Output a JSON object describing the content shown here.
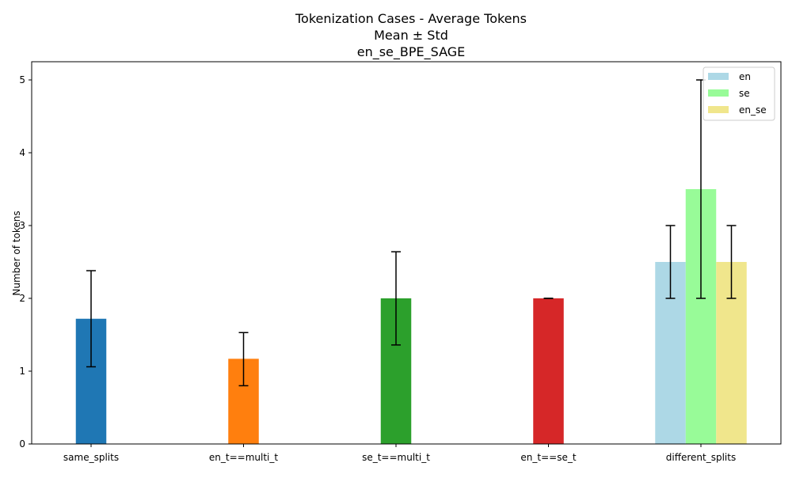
{
  "chart_data": {
    "type": "bar",
    "title_lines": [
      "Tokenization Cases - Average Tokens",
      "Mean ± Std",
      "en_se_BPE_SAGE"
    ],
    "xlabel": "",
    "ylabel": "Number of tokens",
    "ylim": [
      0,
      5.25
    ],
    "yticks": [
      0,
      1,
      2,
      3,
      4,
      5
    ],
    "categories": [
      "same_splits",
      "en_t==multi_t",
      "se_t==multi_t",
      "en_t==se_t",
      "different_splits"
    ],
    "bars": [
      {
        "category": "same_splits",
        "mean": 1.72,
        "err_low": 1.06,
        "err_high": 2.38,
        "color": "#1f77b4"
      },
      {
        "category": "en_t==multi_t",
        "mean": 1.17,
        "err_low": 0.8,
        "err_high": 1.53,
        "color": "#ff7f0e"
      },
      {
        "category": "se_t==multi_t",
        "mean": 2.0,
        "err_low": 1.36,
        "err_high": 2.64,
        "color": "#2ca02c"
      },
      {
        "category": "en_t==se_t",
        "mean": 2.0,
        "err_low": 2.0,
        "err_high": 2.0,
        "color": "#d62728"
      },
      {
        "category": "different_splits",
        "series": "en",
        "mean": 2.5,
        "err_low": 2.0,
        "err_high": 3.0,
        "color": "#add8e6"
      },
      {
        "category": "different_splits",
        "series": "se",
        "mean": 3.5,
        "err_low": 2.0,
        "err_high": 5.0,
        "color": "#98fb98"
      },
      {
        "category": "different_splits",
        "series": "en_se",
        "mean": 2.5,
        "err_low": 2.0,
        "err_high": 3.0,
        "color": "#f0e68c"
      }
    ],
    "legend": {
      "placement": "top-right",
      "entries": [
        {
          "label": "en",
          "color": "#add8e6"
        },
        {
          "label": "se",
          "color": "#98fb98"
        },
        {
          "label": "en_se",
          "color": "#f0e68c"
        }
      ]
    },
    "grid": false
  }
}
